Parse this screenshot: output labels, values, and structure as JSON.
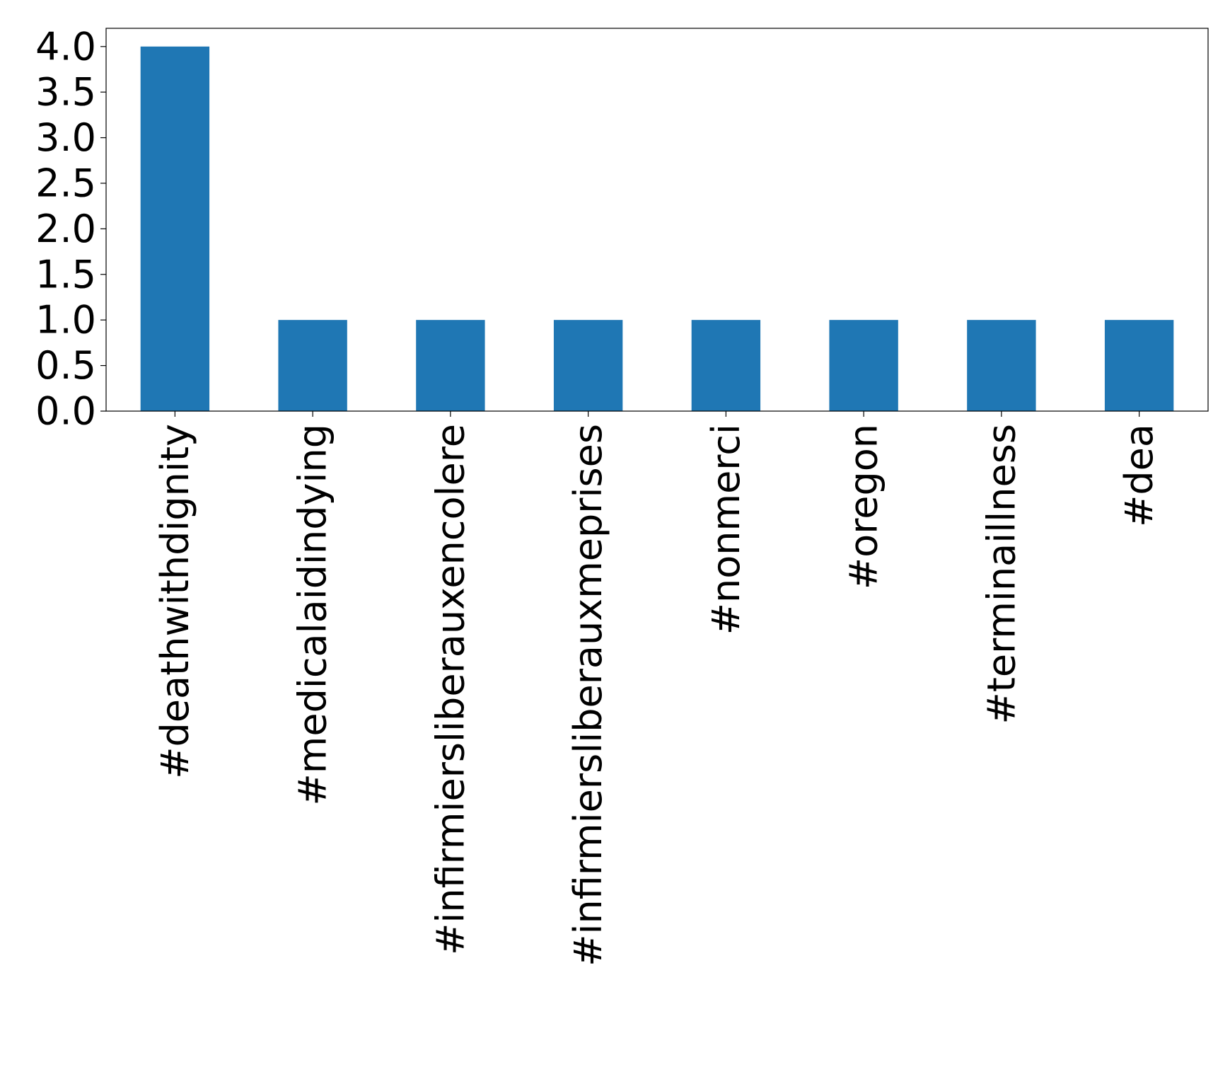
{
  "chart_data": {
    "type": "bar",
    "title": "",
    "xlabel": "",
    "ylabel": "",
    "categories": [
      "#deathwithdignity",
      "#medicalaidindying",
      "#infirmiersliberauxencolere",
      "#infirmiersliberauxmeprises",
      "#nonmerci",
      "#oregon",
      "#terminaillness",
      "#dea"
    ],
    "values": [
      4,
      1,
      1,
      1,
      1,
      1,
      1,
      1
    ],
    "ylim": [
      0,
      4.2
    ],
    "yticks": [
      "0.0",
      "0.5",
      "1.0",
      "1.5",
      "2.0",
      "2.5",
      "3.0",
      "3.5",
      "4.0"
    ],
    "bar_color": "#1f77b4",
    "grid": false,
    "legend": "none"
  }
}
